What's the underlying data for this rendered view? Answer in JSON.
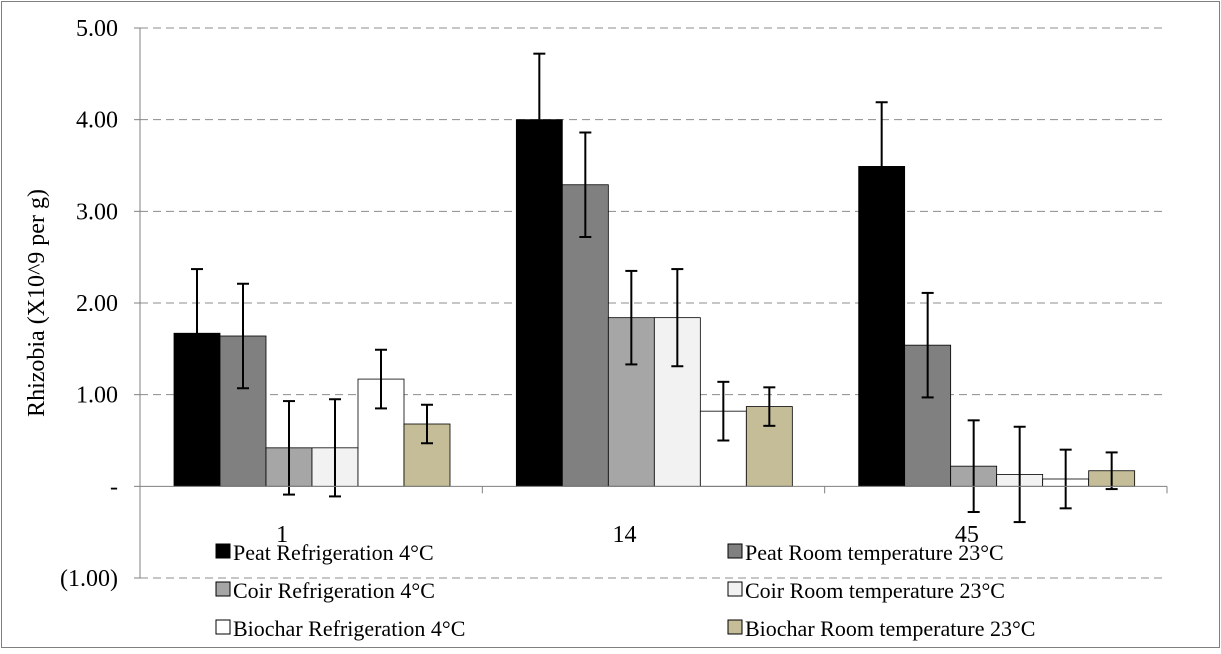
{
  "chart_data": {
    "type": "bar",
    "title": "",
    "xlabel": "",
    "ylabel": "Rhizobia (X10^9 per g)",
    "ylim": [
      -1,
      5
    ],
    "yticks": [
      {
        "value": 5,
        "label": "5.00"
      },
      {
        "value": 4,
        "label": "4.00"
      },
      {
        "value": 3,
        "label": "3.00"
      },
      {
        "value": 2,
        "label": "2.00"
      },
      {
        "value": 1,
        "label": "1.00"
      },
      {
        "value": 0,
        "label": "-"
      },
      {
        "value": -1,
        "label": "(1.00)"
      }
    ],
    "grid": true,
    "legend_position": "bottom",
    "categories": [
      "1",
      "14",
      "45"
    ],
    "series": [
      {
        "name": "Peat Refrigeration 4°C",
        "color": "#000000",
        "values": [
          1.67,
          4.0,
          3.49
        ],
        "errors": [
          0.7,
          0.72,
          0.7
        ]
      },
      {
        "name": "Peat Room temperature 23°C",
        "color": "#808080",
        "values": [
          1.64,
          3.29,
          1.54
        ],
        "errors": [
          0.57,
          0.57,
          0.57
        ]
      },
      {
        "name": "Coir Refrigeration 4°C",
        "color": "#a6a6a6",
        "values": [
          0.42,
          1.84,
          0.22
        ],
        "errors": [
          0.51,
          0.51,
          0.5
        ]
      },
      {
        "name": "Coir Room temperature 23°C",
        "color": "#f2f2f2",
        "values": [
          0.42,
          1.84,
          0.13
        ],
        "errors": [
          0.53,
          0.53,
          0.52
        ]
      },
      {
        "name": "Biochar Refrigeration 4°C",
        "color": "#ffffff",
        "values": [
          1.17,
          0.82,
          0.08
        ],
        "errors": [
          0.32,
          0.32,
          0.32
        ]
      },
      {
        "name": "Biochar Room temperature 23°C",
        "color": "#c4bd97",
        "values": [
          0.68,
          0.87,
          0.17
        ],
        "errors": [
          0.21,
          0.21,
          0.2
        ]
      }
    ]
  }
}
